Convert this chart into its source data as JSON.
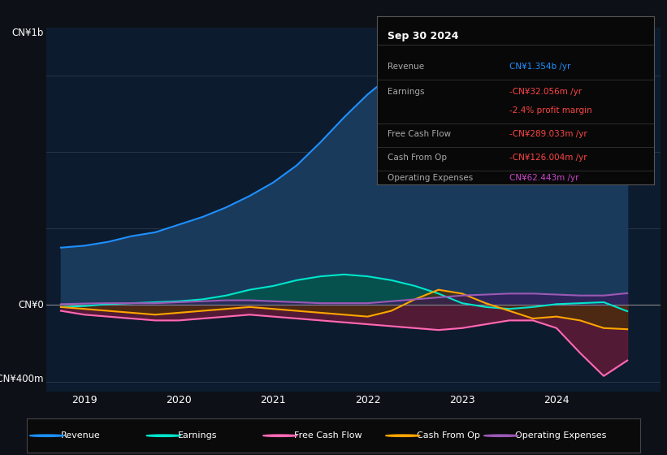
{
  "bg_color": "#0d1117",
  "chart_bg": "#0d1b2e",
  "ylabel_top": "CN¥1b",
  "ylabel_zero": "CN¥0",
  "ylabel_bottom": "-CN¥400m",
  "x_labels": [
    "2019",
    "2020",
    "2021",
    "2022",
    "2023",
    "2024"
  ],
  "info_box": {
    "title": "Sep 30 2024",
    "rows": [
      {
        "label": "Revenue",
        "value": "CN¥1.354b /yr",
        "value_color": "#1e90ff"
      },
      {
        "label": "Earnings",
        "value": "-CN¥32.056m /yr",
        "value_color": "#ff4444"
      },
      {
        "label": "",
        "value": "-2.4% profit margin",
        "value_color": "#ff4444"
      },
      {
        "label": "Free Cash Flow",
        "value": "-CN¥289.033m /yr",
        "value_color": "#ff4444"
      },
      {
        "label": "Cash From Op",
        "value": "-CN¥126.004m /yr",
        "value_color": "#ff4444"
      },
      {
        "label": "Operating Expenses",
        "value": "CN¥62.443m /yr",
        "value_color": "#cc44cc"
      }
    ]
  },
  "series": {
    "revenue": {
      "label": "Revenue",
      "color": "#1e90ff",
      "fill_color": "#1a3a5c",
      "x": [
        2018.75,
        2019.0,
        2019.25,
        2019.5,
        2019.75,
        2020.0,
        2020.25,
        2020.5,
        2020.75,
        2021.0,
        2021.25,
        2021.5,
        2021.75,
        2022.0,
        2022.25,
        2022.5,
        2022.75,
        2023.0,
        2023.25,
        2023.5,
        2023.75,
        2024.0,
        2024.25,
        2024.5,
        2024.75
      ],
      "y": [
        300,
        310,
        330,
        360,
        380,
        420,
        460,
        510,
        570,
        640,
        730,
        850,
        980,
        1100,
        1200,
        1280,
        1310,
        1280,
        1200,
        1100,
        950,
        880,
        950,
        1080,
        1354
      ]
    },
    "earnings": {
      "label": "Earnings",
      "color": "#00e5cc",
      "fill_color": "#005a4a",
      "x": [
        2018.75,
        2019.0,
        2019.25,
        2019.5,
        2019.75,
        2020.0,
        2020.25,
        2020.5,
        2020.75,
        2021.0,
        2021.25,
        2021.5,
        2021.75,
        2022.0,
        2022.25,
        2022.5,
        2022.75,
        2023.0,
        2023.25,
        2023.5,
        2023.75,
        2024.0,
        2024.25,
        2024.5,
        2024.75
      ],
      "y": [
        -10,
        -5,
        5,
        10,
        15,
        20,
        30,
        50,
        80,
        100,
        130,
        150,
        160,
        150,
        130,
        100,
        60,
        10,
        -10,
        -20,
        -10,
        5,
        10,
        15,
        -32
      ]
    },
    "free_cash_flow": {
      "label": "Free Cash Flow",
      "color": "#ff69b4",
      "fill_color": "#6b1a3a",
      "x": [
        2018.75,
        2019.0,
        2019.25,
        2019.5,
        2019.75,
        2020.0,
        2020.25,
        2020.5,
        2020.75,
        2021.0,
        2021.25,
        2021.5,
        2021.75,
        2022.0,
        2022.25,
        2022.5,
        2022.75,
        2023.0,
        2023.25,
        2023.5,
        2023.75,
        2024.0,
        2024.25,
        2024.5,
        2024.75
      ],
      "y": [
        -30,
        -50,
        -60,
        -70,
        -80,
        -80,
        -70,
        -60,
        -50,
        -60,
        -70,
        -80,
        -90,
        -100,
        -110,
        -120,
        -130,
        -120,
        -100,
        -80,
        -80,
        -120,
        -250,
        -370,
        -289
      ]
    },
    "cash_from_op": {
      "label": "Cash From Op",
      "color": "#ffa500",
      "fill_color": "#4a3000",
      "x": [
        2018.75,
        2019.0,
        2019.25,
        2019.5,
        2019.75,
        2020.0,
        2020.25,
        2020.5,
        2020.75,
        2021.0,
        2021.25,
        2021.5,
        2021.75,
        2022.0,
        2022.25,
        2022.5,
        2022.75,
        2023.0,
        2023.25,
        2023.5,
        2023.75,
        2024.0,
        2024.25,
        2024.5,
        2024.75
      ],
      "y": [
        -10,
        -20,
        -30,
        -40,
        -50,
        -40,
        -30,
        -20,
        -10,
        -20,
        -30,
        -40,
        -50,
        -60,
        -30,
        30,
        80,
        60,
        10,
        -30,
        -70,
        -60,
        -80,
        -120,
        -126
      ]
    },
    "operating_expenses": {
      "label": "Operating Expenses",
      "color": "#9b59b6",
      "fill_color": "#3a1a5c",
      "x": [
        2018.75,
        2019.0,
        2019.25,
        2019.5,
        2019.75,
        2020.0,
        2020.25,
        2020.5,
        2020.75,
        2021.0,
        2021.25,
        2021.5,
        2021.75,
        2022.0,
        2022.25,
        2022.5,
        2022.75,
        2023.0,
        2023.25,
        2023.5,
        2023.75,
        2024.0,
        2024.25,
        2024.5,
        2024.75
      ],
      "y": [
        5,
        8,
        10,
        10,
        10,
        15,
        20,
        25,
        25,
        20,
        15,
        10,
        10,
        10,
        20,
        30,
        40,
        50,
        55,
        60,
        60,
        55,
        50,
        50,
        62
      ]
    }
  },
  "legend": [
    {
      "label": "Revenue",
      "color": "#1e90ff"
    },
    {
      "label": "Earnings",
      "color": "#00e5cc"
    },
    {
      "label": "Free Cash Flow",
      "color": "#ff69b4"
    },
    {
      "label": "Cash From Op",
      "color": "#ffa500"
    },
    {
      "label": "Operating Expenses",
      "color": "#9b59b6"
    }
  ]
}
